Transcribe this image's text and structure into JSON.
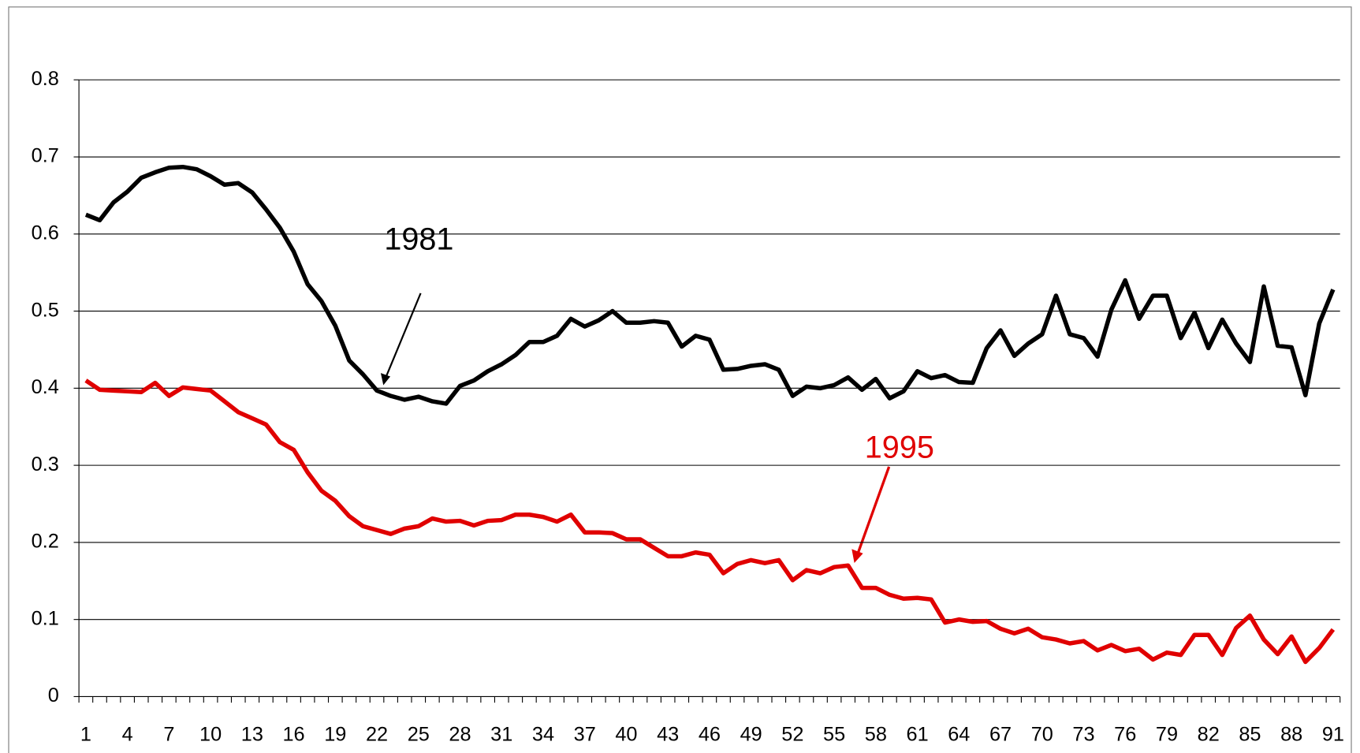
{
  "chart_data": {
    "type": "line",
    "categories": [
      "1",
      null,
      null,
      "4",
      null,
      null,
      "7",
      null,
      null,
      "10",
      null,
      null,
      "13",
      null,
      null,
      "16",
      null,
      null,
      "19",
      null,
      null,
      "22",
      null,
      null,
      "25",
      null,
      null,
      "28",
      null,
      null,
      "31",
      null,
      null,
      "34",
      null,
      null,
      "37",
      null,
      null,
      "40",
      null,
      null,
      "43",
      null,
      null,
      "46",
      null,
      null,
      "49",
      null,
      null,
      "52",
      null,
      null,
      "55",
      null,
      null,
      "58",
      null,
      null,
      "61",
      null,
      null,
      "64",
      null,
      null,
      "67",
      null,
      null,
      "70",
      null,
      null,
      "73",
      null,
      null,
      "76",
      null,
      null,
      "79",
      null,
      null,
      "82",
      null,
      null,
      "85",
      null,
      null,
      "88",
      null,
      null,
      "91"
    ],
    "series": [
      {
        "name": "1981",
        "color": "#000000",
        "values": [
          0.625,
          0.618,
          0.641,
          0.655,
          0.673,
          0.68,
          0.686,
          0.687,
          0.684,
          0.675,
          0.664,
          0.666,
          0.654,
          0.632,
          0.608,
          0.577,
          0.535,
          0.513,
          0.481,
          0.436,
          0.418,
          0.397,
          0.39,
          0.385,
          0.389,
          0.383,
          0.38,
          0.403,
          0.41,
          0.422,
          0.431,
          0.443,
          0.46,
          0.46,
          0.468,
          0.49,
          0.48,
          0.488,
          0.5,
          0.485,
          0.485,
          0.487,
          0.485,
          0.454,
          0.468,
          0.463,
          0.424,
          0.425,
          0.429,
          0.431,
          0.424,
          0.39,
          0.402,
          0.4,
          0.404,
          0.414,
          0.398,
          0.412,
          0.387,
          0.396,
          0.422,
          0.413,
          0.417,
          0.408,
          0.407,
          0.452,
          0.475,
          0.442,
          0.458,
          0.47,
          0.52,
          0.47,
          0.465,
          0.441,
          0.502,
          0.54,
          0.49,
          0.52,
          0.52,
          0.465,
          0.498,
          0.452,
          0.489,
          0.458,
          0.434,
          0.532,
          0.455,
          0.453,
          0.391,
          0.484,
          0.528
        ]
      },
      {
        "name": "1995",
        "color": "#e00000",
        "values": [
          0.41,
          0.398,
          0.397,
          0.396,
          0.395,
          0.407,
          0.39,
          0.401,
          0.399,
          0.397,
          0.383,
          0.369,
          0.361,
          0.353,
          0.33,
          0.32,
          0.291,
          0.267,
          0.254,
          0.234,
          0.221,
          0.216,
          0.211,
          0.218,
          0.221,
          0.231,
          0.227,
          0.228,
          0.222,
          0.228,
          0.229,
          0.236,
          0.236,
          0.233,
          0.227,
          0.236,
          0.213,
          0.213,
          0.212,
          0.204,
          0.204,
          0.193,
          0.182,
          0.182,
          0.187,
          0.184,
          0.16,
          0.172,
          0.177,
          0.173,
          0.177,
          0.151,
          0.164,
          0.16,
          0.168,
          0.17,
          0.141,
          0.141,
          0.132,
          0.127,
          0.128,
          0.126,
          0.096,
          0.1,
          0.097,
          0.098,
          0.088,
          0.082,
          0.088,
          0.077,
          0.074,
          0.069,
          0.072,
          0.06,
          0.067,
          0.059,
          0.062,
          0.048,
          0.057,
          0.054,
          0.08,
          0.08,
          0.054,
          0.089,
          0.105,
          0.074,
          0.055,
          0.078,
          0.045,
          0.063,
          0.087
        ]
      }
    ],
    "ylim": [
      0,
      0.8
    ],
    "yticks": [
      0,
      0.1,
      0.2,
      0.3,
      0.4,
      0.5,
      0.6,
      0.7,
      0.8
    ],
    "grid": true
  }
}
